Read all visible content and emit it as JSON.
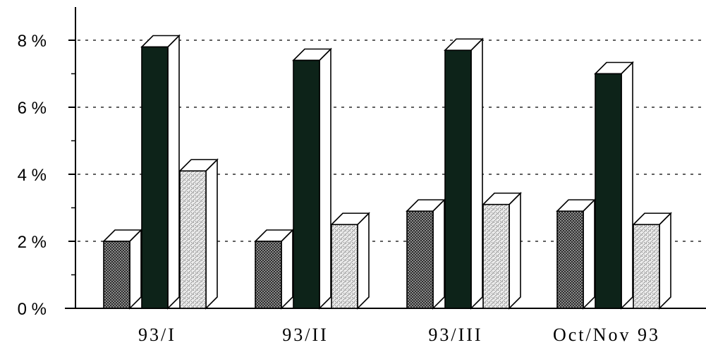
{
  "chart_data": {
    "type": "bar",
    "categories": [
      "93/I",
      "93/II",
      "93/III",
      "Oct/Nov 93"
    ],
    "series": [
      {
        "values": [
          2.0,
          2.0,
          2.9,
          2.9
        ],
        "pattern": "crosshatch-dark",
        "color": "#5a5a5a"
      },
      {
        "values": [
          7.8,
          7.4,
          7.7,
          7.0
        ],
        "pattern": "solid",
        "color": "#0d2319"
      },
      {
        "values": [
          4.1,
          2.5,
          3.1,
          2.5
        ],
        "pattern": "stipple-light",
        "color": "#c8c8c8"
      }
    ],
    "y_ticks": [
      "0 %",
      "2 %",
      "4 %",
      "6 %",
      "8 %"
    ],
    "ylim": [
      0,
      8
    ],
    "grid": "dotted horizontal",
    "legend": "none"
  }
}
